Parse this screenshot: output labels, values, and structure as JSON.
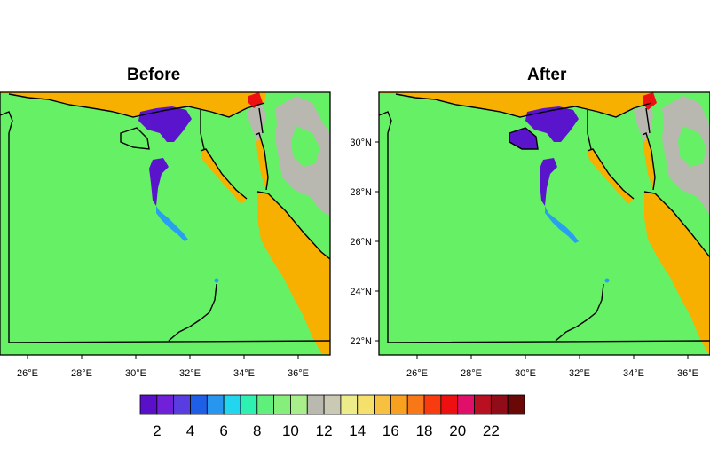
{
  "panels": [
    {
      "title": "Before"
    },
    {
      "title": "After"
    }
  ],
  "lon_ticks": [
    "26°E",
    "28°E",
    "30°E",
    "32°E",
    "34°E",
    "36°E"
  ],
  "lat_ticks": [
    "30°N",
    "28°N",
    "26°N",
    "24°N",
    "22°N"
  ],
  "colorbar": {
    "labels": [
      "2",
      "4",
      "6",
      "8",
      "10",
      "12",
      "14",
      "16",
      "18",
      "20",
      "22"
    ],
    "colors": [
      "#5a0fc8",
      "#6f20d8",
      "#5a3de0",
      "#1f5fe8",
      "#2896ee",
      "#22d6f0",
      "#2ef0b0",
      "#5ef07a",
      "#86ee7a",
      "#a8ee8a",
      "#b9b9b0",
      "#c9c9b4",
      "#ecec8a",
      "#f4e06a",
      "#f8c040",
      "#f8a020",
      "#f87818",
      "#f83c10",
      "#ee1010",
      "#e0106a",
      "#b81020",
      "#900c18",
      "#6a0808"
    ]
  },
  "colors": {
    "land": "#66f066",
    "sea": "#f8b000",
    "low": "#5a14cc",
    "highland": "#b8b8b0",
    "hot": "#ee1010",
    "edge": "#28a0f0"
  }
}
